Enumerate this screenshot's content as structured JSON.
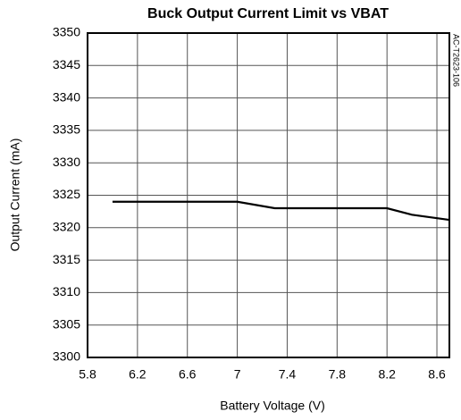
{
  "chart_data": {
    "type": "line",
    "title": "Buck Output Current Limit vs VBAT",
    "x_label": "Battery Voltage (V)",
    "y_label": "Output Current (mA)",
    "annotation": "AC-T2623-106",
    "x": [
      6.0,
      7.0,
      7.3,
      8.2,
      8.4,
      8.7
    ],
    "series": [
      {
        "name": "Output Current",
        "color": "#000000",
        "values": [
          3324,
          3324,
          3323,
          3323,
          3322,
          3321.2
        ]
      }
    ],
    "xlim": [
      5.8,
      8.7
    ],
    "xticks": [
      5.8,
      6.2,
      6.6,
      7,
      7.4,
      7.8,
      8.2,
      8.6
    ],
    "ylim": [
      3300,
      3350
    ],
    "yticks": [
      3300,
      3305,
      3310,
      3315,
      3320,
      3325,
      3330,
      3335,
      3340,
      3345,
      3350
    ],
    "grid": true
  }
}
